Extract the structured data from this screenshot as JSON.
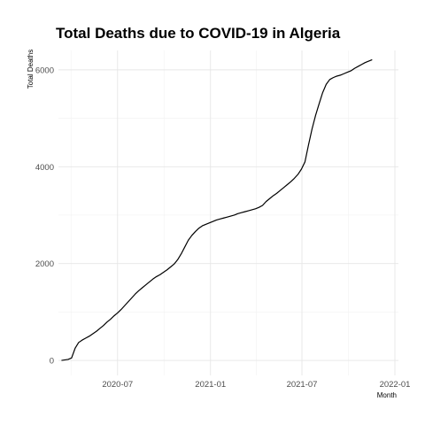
{
  "chart_data": {
    "type": "line",
    "title": "Total Deaths due to COVID-19 in Algeria",
    "xlabel": "Month",
    "ylabel": "Total Deaths",
    "x_ticks": [
      "2020-07",
      "2021-01",
      "2021-07",
      "2022-01"
    ],
    "y_ticks": [
      0,
      2000,
      4000,
      6000
    ],
    "xlim": [
      "2020-03-06",
      "2022-01-08"
    ],
    "ylim": [
      -310,
      6400
    ],
    "grid": true,
    "series": [
      {
        "color": "#000000",
        "x": [
          "2020-03-12",
          "2020-03-25",
          "2020-04-01",
          "2020-04-08",
          "2020-04-15",
          "2020-04-22",
          "2020-04-29",
          "2020-05-06",
          "2020-05-13",
          "2020-05-20",
          "2020-05-27",
          "2020-06-03",
          "2020-06-10",
          "2020-06-17",
          "2020-06-24",
          "2020-07-01",
          "2020-07-08",
          "2020-07-15",
          "2020-07-22",
          "2020-07-29",
          "2020-08-05",
          "2020-08-12",
          "2020-08-19",
          "2020-08-26",
          "2020-09-02",
          "2020-09-09",
          "2020-09-16",
          "2020-09-23",
          "2020-09-30",
          "2020-10-07",
          "2020-10-14",
          "2020-10-21",
          "2020-10-28",
          "2020-11-04",
          "2020-11-11",
          "2020-11-18",
          "2020-11-25",
          "2020-12-02",
          "2020-12-09",
          "2020-12-16",
          "2020-12-23",
          "2020-12-30",
          "2021-01-06",
          "2021-01-13",
          "2021-01-20",
          "2021-01-27",
          "2021-02-03",
          "2021-02-10",
          "2021-02-17",
          "2021-02-24",
          "2021-03-03",
          "2021-03-10",
          "2021-03-17",
          "2021-03-24",
          "2021-03-31",
          "2021-04-07",
          "2021-04-14",
          "2021-04-21",
          "2021-04-28",
          "2021-05-05",
          "2021-05-12",
          "2021-05-19",
          "2021-05-26",
          "2021-06-02",
          "2021-06-09",
          "2021-06-16",
          "2021-06-23",
          "2021-06-30",
          "2021-07-07",
          "2021-07-14",
          "2021-07-21",
          "2021-07-28",
          "2021-08-04",
          "2021-08-11",
          "2021-08-18",
          "2021-08-25",
          "2021-09-01",
          "2021-09-08",
          "2021-09-15",
          "2021-09-22",
          "2021-09-29",
          "2021-10-06",
          "2021-10-13",
          "2021-10-20",
          "2021-10-27",
          "2021-11-03",
          "2021-11-10",
          "2021-11-17"
        ],
        "y": [
          0,
          20,
          50,
          250,
          370,
          420,
          460,
          500,
          550,
          600,
          660,
          720,
          790,
          850,
          920,
          980,
          1050,
          1130,
          1210,
          1290,
          1370,
          1440,
          1500,
          1560,
          1620,
          1680,
          1730,
          1770,
          1820,
          1870,
          1930,
          1990,
          2080,
          2200,
          2340,
          2480,
          2580,
          2660,
          2730,
          2780,
          2810,
          2840,
          2870,
          2900,
          2920,
          2940,
          2960,
          2980,
          3000,
          3030,
          3050,
          3070,
          3090,
          3110,
          3130,
          3160,
          3200,
          3280,
          3340,
          3400,
          3450,
          3510,
          3570,
          3630,
          3690,
          3760,
          3840,
          3950,
          4100,
          4450,
          4780,
          5060,
          5300,
          5530,
          5700,
          5800,
          5840,
          5870,
          5890,
          5920,
          5950,
          5980,
          6030,
          6070,
          6110,
          6150,
          6180,
          6210
        ]
      }
    ]
  }
}
